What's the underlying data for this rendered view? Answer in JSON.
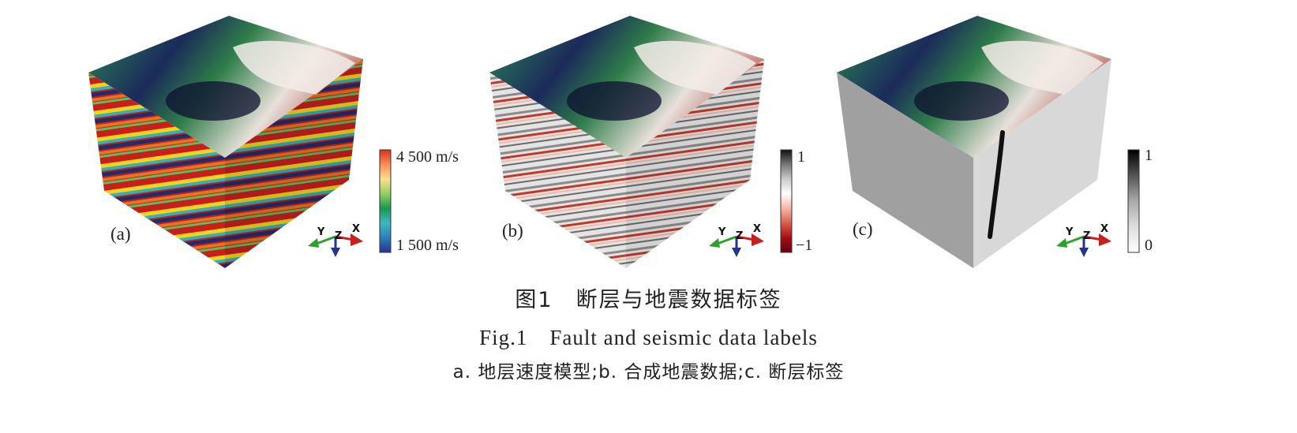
{
  "figure": {
    "caption_cn": "图1　断层与地震数据标签",
    "caption_en": "Fig.1　Fault and seismic data labels",
    "caption_sub": "a. 地层速度模型;b. 合成地震数据;c. 断层标签"
  },
  "panels": [
    {
      "id": "a",
      "label": "(a)",
      "colorbar": {
        "top_label": "4 500 m/s",
        "bottom_label": "1 500 m/s",
        "colors": [
          "#d7301f",
          "#fc8d59",
          "#fee08b",
          "#91cf60",
          "#1a9850",
          "#41b6c4",
          "#2c7fb8",
          "#253494"
        ]
      },
      "axes": {
        "x": "X",
        "y": "Y",
        "z": "Z"
      }
    },
    {
      "id": "b",
      "label": "(b)",
      "colorbar": {
        "top_label": "1",
        "bottom_label": "−1",
        "colors": [
          "#111111",
          "#777777",
          "#cccccc",
          "#ffffff",
          "#f4b6a6",
          "#d6604d",
          "#a50f15",
          "#67000d"
        ]
      },
      "axes": {
        "x": "X",
        "y": "Y",
        "z": "Z"
      }
    },
    {
      "id": "c",
      "label": "(c)",
      "colorbar": {
        "top_label": "1",
        "bottom_label": "0",
        "colors": [
          "#000000",
          "#555555",
          "#aaaaaa",
          "#dddddd",
          "#ffffff"
        ]
      },
      "axes": {
        "x": "X",
        "y": "Y",
        "z": "Z"
      }
    }
  ]
}
